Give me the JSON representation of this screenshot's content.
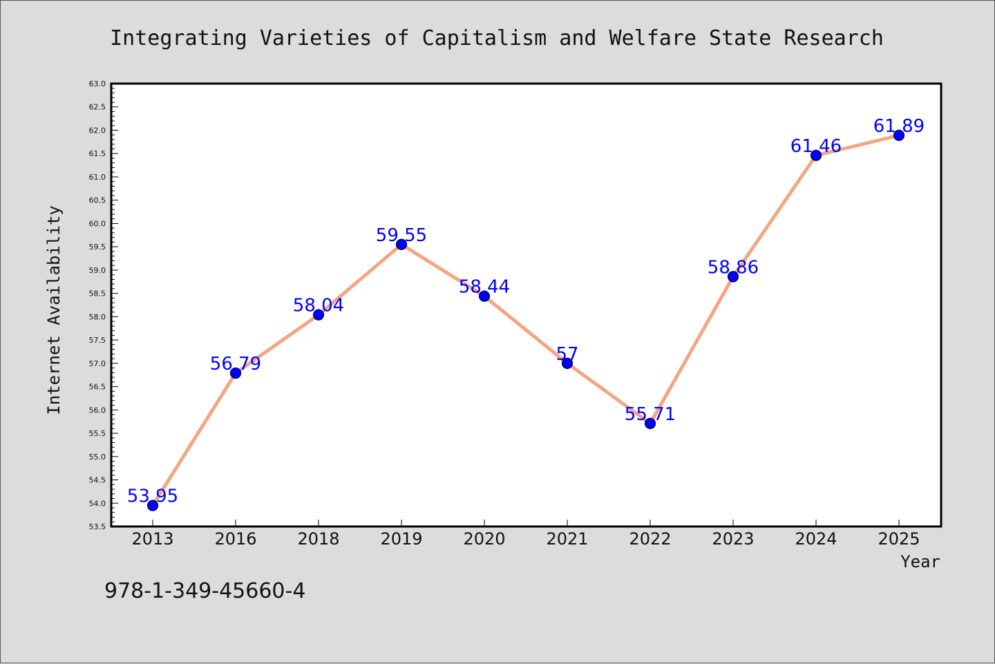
{
  "chart_data": {
    "type": "line",
    "title": "Integrating Varieties of Capitalism and Welfare State Research",
    "xlabel": "Year",
    "ylabel": "Internet Availability",
    "categories": [
      "2013",
      "2016",
      "2018",
      "2019",
      "2020",
      "2021",
      "2022",
      "2023",
      "2024",
      "2025"
    ],
    "series": [
      {
        "values": [
          53.95,
          56.79,
          58.04,
          59.55,
          58.44,
          57,
          55.71,
          58.86,
          61.46,
          61.89
        ]
      }
    ],
    "data_labels": [
      "53.95",
      "56.79",
      "58.04",
      "59.55",
      "58.44",
      "57",
      "55.71",
      "58.86",
      "61.46",
      "61.89"
    ],
    "ylim": [
      53.5,
      63.0
    ],
    "yticks": [
      "53.5",
      "54.0",
      "54.5",
      "55.0",
      "55.5",
      "56.0",
      "56.5",
      "57.0",
      "57.5",
      "58.0",
      "58.5",
      "59.0",
      "59.5",
      "60.0",
      "60.5",
      "61.0",
      "61.5",
      "62.0",
      "62.5",
      "63.0"
    ],
    "grid": false,
    "legend": "none",
    "colors": {
      "line": "#f4a582",
      "marker": "#0000ff",
      "label": "#0000ff",
      "background": "#dcdcdc",
      "plot_background": "#ffffff"
    }
  },
  "footer": {
    "isbn": "978-1-349-45660-4"
  }
}
